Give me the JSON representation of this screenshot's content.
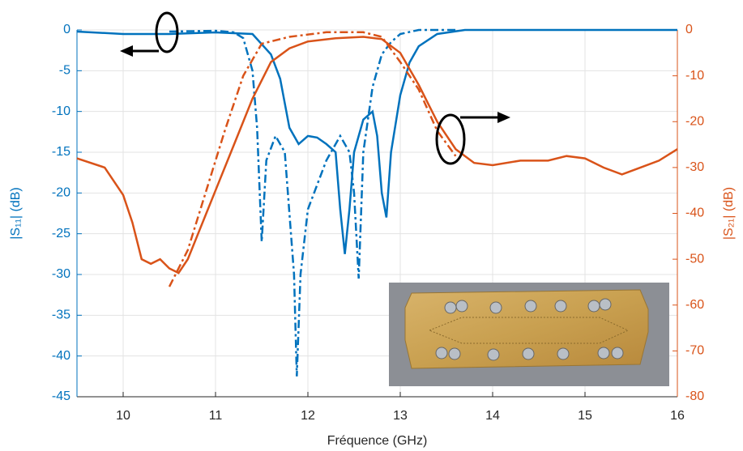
{
  "chart_data": {
    "type": "line",
    "xlabel": "Fréquence (GHz)",
    "ylabel": "|S₁₁| (dB)",
    "y2label": "|S₂₁| (dB)",
    "xlim": [
      9.5,
      16
    ],
    "xticks": [
      10,
      11,
      12,
      13,
      14,
      15,
      16
    ],
    "ylim": [
      -45,
      0
    ],
    "yticks": [
      0,
      -5,
      -10,
      -15,
      -20,
      -25,
      -30,
      -35,
      -40,
      -45
    ],
    "y2lim": [
      -80,
      0
    ],
    "y2ticks": [
      0,
      -10,
      -20,
      -30,
      -40,
      -50,
      -60,
      -70,
      -80
    ],
    "grid": true,
    "y_color": "#0072bd",
    "y2_color": "#d95319",
    "series": [
      {
        "color": "#0072bd",
        "style": "solid",
        "x": [
          9.5,
          10,
          10.5,
          11,
          11.4,
          11.6,
          11.7,
          11.8,
          11.9,
          12.0,
          12.1,
          12.2,
          12.3,
          12.35,
          12.4,
          12.45,
          12.5,
          12.6,
          12.7,
          12.75,
          12.8,
          12.85,
          12.9,
          13.0,
          13.1,
          13.2,
          13.4,
          13.7,
          14,
          16
        ],
        "values": [
          -0.2,
          -0.5,
          -0.5,
          -0.3,
          -0.5,
          -3,
          -6,
          -12,
          -14,
          -13,
          -13.2,
          -14,
          -15,
          -22,
          -27.5,
          -22,
          -15,
          -11,
          -10,
          -13,
          -20,
          -23,
          -15,
          -8,
          -4,
          -2,
          -0.5,
          0,
          0,
          0
        ]
      },
      {
        "color": "#0072bd",
        "style": "dashdot",
        "x": [
          10.5,
          11,
          11.2,
          11.3,
          11.4,
          11.45,
          11.5,
          11.55,
          11.65,
          11.75,
          11.85,
          11.88,
          11.92,
          12.0,
          12.2,
          12.35,
          12.45,
          12.5,
          12.55,
          12.6,
          12.7,
          12.8,
          12.9,
          13.0,
          13.2,
          13.6
        ],
        "values": [
          -0.2,
          -0.1,
          -0.3,
          -1,
          -5,
          -12,
          -26,
          -16,
          -13,
          -15,
          -30,
          -42.5,
          -30,
          -22,
          -16,
          -13,
          -15,
          -20,
          -30.5,
          -15,
          -7,
          -3,
          -1.5,
          -0.5,
          0,
          0
        ]
      },
      {
        "color": "#d95319",
        "style": "solid",
        "axis": "y2",
        "x": [
          9.5,
          9.8,
          10.0,
          10.1,
          10.2,
          10.3,
          10.4,
          10.5,
          10.6,
          10.7,
          10.8,
          11.0,
          11.2,
          11.4,
          11.6,
          11.8,
          12.0,
          12.3,
          12.6,
          12.8,
          13.0,
          13.2,
          13.4,
          13.6,
          13.8,
          14.0,
          14.3,
          14.6,
          14.8,
          15.0,
          15.2,
          15.4,
          15.6,
          15.8,
          16
        ],
        "values": [
          -28,
          -30,
          -36,
          -42,
          -50,
          -51,
          -50,
          -52,
          -53,
          -50,
          -45,
          -35,
          -25,
          -15,
          -7,
          -4,
          -2.5,
          -1.8,
          -1.5,
          -2,
          -5,
          -12,
          -20,
          -26,
          -29,
          -29.5,
          -28.5,
          -28.5,
          -27.5,
          -28,
          -30,
          -31.5,
          -30,
          -28.5,
          -26
        ]
      },
      {
        "color": "#d95319",
        "style": "dashdot",
        "axis": "y2",
        "x": [
          10.5,
          10.7,
          10.9,
          11.1,
          11.3,
          11.5,
          11.8,
          12.2,
          12.6,
          12.8,
          13.0,
          13.2,
          13.4,
          13.6
        ],
        "values": [
          -56,
          -48,
          -35,
          -22,
          -10,
          -3,
          -1.5,
          -0.5,
          -0.5,
          -1.5,
          -7,
          -13,
          -22,
          -27.5
        ]
      }
    ]
  }
}
